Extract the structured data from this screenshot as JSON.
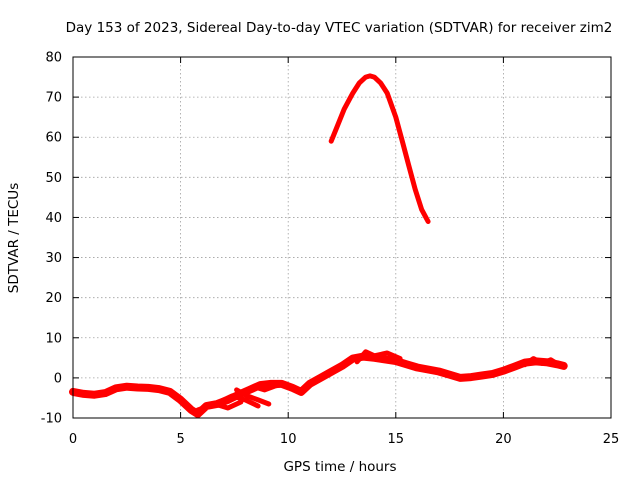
{
  "chart_data": {
    "type": "line",
    "title": "Day 153 of 2023, Sidereal Day-to-day VTEC variation (SDTVAR) for receiver zim2",
    "xlabel": "GPS time / hours",
    "ylabel": "SDTVAR / TECUs",
    "xlim": [
      0,
      25
    ],
    "ylim": [
      -10,
      80
    ],
    "xticks": [
      0,
      5,
      10,
      15,
      20,
      25
    ],
    "yticks": [
      -10,
      0,
      10,
      20,
      30,
      40,
      50,
      60,
      70,
      80
    ],
    "xtick_labels": [
      "0",
      "5",
      "10",
      "15",
      "20",
      "25"
    ],
    "ytick_labels": [
      "-10",
      "0",
      "10",
      "20",
      "30",
      "40",
      "50",
      "60",
      "70",
      "80"
    ],
    "grid": true,
    "color": "#ff0000",
    "series": [
      {
        "name": "baseline",
        "x": [
          0,
          0.5,
          1.0,
          1.5,
          2.0,
          2.5,
          3.0,
          3.5,
          4.0,
          4.5,
          5.0,
          5.5,
          5.8,
          6.2,
          6.7,
          7.2,
          7.7,
          8.2,
          8.7,
          9.2,
          9.7,
          10.2,
          10.6,
          11.0,
          11.5,
          12.0,
          12.5,
          13.0,
          13.5,
          14.0,
          14.5,
          15.0,
          15.5,
          16.0,
          16.5,
          17.0,
          17.5,
          18.0,
          18.5,
          19.0,
          19.5,
          20.0,
          20.5,
          21.0,
          21.5,
          22.0,
          22.5,
          22.8
        ],
        "y": [
          -3.5,
          -4,
          -4.2,
          -3.8,
          -2.6,
          -2.2,
          -2.4,
          -2.5,
          -2.8,
          -3.5,
          -5.5,
          -8,
          -9,
          -7,
          -6.5,
          -5.5,
          -4.2,
          -3,
          -1.8,
          -1.5,
          -1.5,
          -2.5,
          -3.5,
          -1.5,
          0,
          1.5,
          3,
          4.8,
          5.3,
          5,
          4.6,
          4.2,
          3.4,
          2.6,
          2.1,
          1.6,
          0.8,
          0,
          0.2,
          0.6,
          1,
          1.8,
          2.8,
          3.8,
          4.1,
          3.9,
          3.4,
          3
        ]
      },
      {
        "name": "spikes",
        "segments": [
          {
            "x": [
              5.8,
              6.6,
              7.2,
              7.8
            ],
            "y": [
              -8,
              -6.5,
              -7.5,
              -6
            ]
          },
          {
            "x": [
              6.8,
              7.4,
              8.0,
              8.6
            ],
            "y": [
              -6,
              -4.5,
              -5.5,
              -7
            ]
          },
          {
            "x": [
              7.6,
              8.1,
              8.6,
              9.1
            ],
            "y": [
              -3,
              -4.5,
              -5.5,
              -6.5
            ]
          },
          {
            "x": [
              8.4,
              8.9,
              9.4,
              9.9
            ],
            "y": [
              -2.2,
              -3,
              -2,
              -1.5
            ]
          },
          {
            "x": [
              13.2,
              13.6,
              14.0,
              14.6,
              15.2
            ],
            "y": [
              4,
              6.5,
              5.5,
              6.2,
              4.8
            ]
          },
          {
            "x": [
              21.0,
              21.4,
              21.8,
              22.2,
              22.6
            ],
            "y": [
              3.3,
              4.8,
              3.6,
              4.5,
              3.2
            ]
          }
        ]
      },
      {
        "name": "arc",
        "x": [
          12.0,
          12.3,
          12.6,
          13.0,
          13.3,
          13.6,
          13.8,
          14.0,
          14.3,
          14.6,
          15.0,
          15.3,
          15.6,
          15.9,
          16.2,
          16.5
        ],
        "y": [
          59,
          63,
          67,
          71,
          73.5,
          75,
          75.3,
          75,
          73.5,
          71,
          65,
          59,
          53,
          47,
          42,
          39
        ]
      }
    ]
  }
}
